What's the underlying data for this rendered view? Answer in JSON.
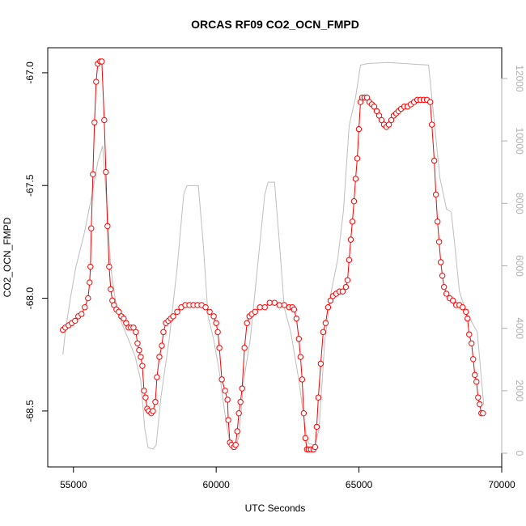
{
  "chart_data": {
    "type": "line",
    "title": "ORCAS RF09 CO2_OCN_FMPD",
    "xlabel": "UTC Seconds",
    "ylabel": "CO2_OCN_FMPD",
    "xlim": [
      54100,
      70000
    ],
    "xticks": [
      55000,
      60000,
      65000,
      70000
    ],
    "ylim": [
      -68.748,
      -66.889
    ],
    "yticks": [
      {
        "value": -67,
        "label": "-67.0"
      },
      -67.5,
      {
        "value": -68,
        "label": "-68.0"
      },
      -68.5
    ],
    "y2lim": [
      -440,
      12984
    ],
    "y2ticks": [
      0,
      2000,
      4000,
      6000,
      8000,
      10000,
      12000
    ],
    "y2_color": "#b0b0b0",
    "series": [
      {
        "color": "#bebebe",
        "axis": "y2",
        "markers": false,
        "x": [
          54631,
          54716,
          54886,
          55085,
          55369,
          55653,
          55852,
          56022,
          56164,
          56306,
          56505,
          56704,
          56931,
          57158,
          57357,
          57499,
          57613,
          57783,
          57897,
          58067,
          58351,
          58635,
          58862,
          58976,
          59374,
          59544,
          59714,
          59913,
          60112,
          60339,
          60481,
          60680,
          60794,
          60964,
          61191,
          61418,
          61702,
          61816,
          62043,
          62214,
          62384,
          62611,
          62895,
          63122,
          63236,
          63463,
          63605,
          63804,
          64031,
          64258,
          64457,
          64656,
          64883,
          65054,
          65310,
          66019,
          66871,
          67439,
          67609,
          67836,
          68064,
          68234,
          68348,
          68518,
          68746,
          69144,
          69370
        ],
        "values": [
          3160,
          3885,
          4920,
          5960,
          7000,
          8290,
          9320,
          9840,
          8030,
          5960,
          4660,
          4140,
          3630,
          3110,
          2330,
          780,
          180,
          130,
          260,
          1810,
          3630,
          5960,
          8290,
          8570,
          8570,
          6730,
          4400,
          3630,
          2590,
          1040,
          310,
          230,
          520,
          2330,
          3630,
          5700,
          8290,
          8680,
          8680,
          6730,
          4660,
          3885,
          2330,
          780,
          310,
          260,
          780,
          3630,
          5180,
          6220,
          7770,
          10490,
          11400,
          12430,
          12480,
          12510,
          12460,
          12430,
          10880,
          8810,
          7820,
          7720,
          6730,
          5180,
          4530,
          3885,
          1550
        ]
      },
      {
        "color": "#ff0000",
        "markers": true,
        "x": [
          54631,
          54716,
          54830,
          54943,
          55057,
          55170,
          55284,
          55398,
          55511,
          55568,
          55596,
          55625,
          55682,
          55738,
          55795,
          55852,
          55937,
          55994,
          56079,
          56136,
          56193,
          56250,
          56306,
          56363,
          56420,
          56505,
          56590,
          56676,
          56761,
          56846,
          56931,
          57016,
          57102,
          57187,
          57244,
          57300,
          57357,
          57414,
          57471,
          57528,
          57584,
          57641,
          57726,
          57783,
          57868,
          57925,
          58010,
          58096,
          58152,
          58238,
          58323,
          58408,
          58493,
          58635,
          58777,
          58919,
          59061,
          59203,
          59345,
          59487,
          59629,
          59771,
          59913,
          59998,
          60055,
          60112,
          60197,
          60311,
          60396,
          60424,
          60481,
          60538,
          60623,
          60680,
          60737,
          60794,
          60850,
          60907,
          60992,
          61078,
          61163,
          61248,
          61362,
          61532,
          61702,
          61873,
          62043,
          62214,
          62384,
          62554,
          62668,
          62726,
          62810,
          62895,
          62952,
          63009,
          63066,
          63122,
          63179,
          63236,
          63321,
          63406,
          63463,
          63520,
          63577,
          63662,
          63747,
          63832,
          63918,
          64003,
          64088,
          64202,
          64315,
          64429,
          64542,
          64599,
          64656,
          64713,
          64770,
          64826,
          64883,
          64940,
          64997,
          65054,
          65110,
          65196,
          65281,
          65366,
          65451,
          65536,
          65622,
          65707,
          65792,
          65877,
          65962,
          66048,
          66133,
          66218,
          66303,
          66388,
          66474,
          66587,
          66701,
          66814,
          66928,
          67042,
          67155,
          67269,
          67382,
          67496,
          67553,
          67638,
          67695,
          67752,
          67808,
          67865,
          67922,
          67979,
          68064,
          68178,
          68291,
          68405,
          68518,
          68632,
          68746,
          68802,
          68859,
          68944,
          69001,
          69058,
          69115,
          69172,
          69228,
          69285,
          69342
        ],
        "values": [
          -68.14,
          -68.13,
          -68.12,
          -68.11,
          -68.1,
          -68.08,
          -68.07,
          -68.04,
          -68.0,
          -67.93,
          -67.86,
          -67.69,
          -67.45,
          -67.22,
          -67.04,
          -66.96,
          -66.95,
          -66.95,
          -67.21,
          -67.44,
          -67.68,
          -67.86,
          -67.96,
          -68.01,
          -68.03,
          -68.05,
          -68.06,
          -68.08,
          -68.09,
          -68.11,
          -68.13,
          -68.13,
          -68.13,
          -68.15,
          -68.2,
          -68.23,
          -68.26,
          -68.3,
          -68.41,
          -68.44,
          -68.49,
          -68.5,
          -68.51,
          -68.5,
          -68.46,
          -68.35,
          -68.26,
          -68.21,
          -68.15,
          -68.11,
          -68.1,
          -68.09,
          -68.08,
          -68.06,
          -68.04,
          -68.03,
          -68.03,
          -68.03,
          -68.03,
          -68.03,
          -68.04,
          -68.06,
          -68.08,
          -68.11,
          -68.15,
          -68.22,
          -68.36,
          -68.41,
          -68.45,
          -68.54,
          -68.64,
          -68.65,
          -68.66,
          -68.65,
          -68.59,
          -68.51,
          -68.46,
          -68.4,
          -68.22,
          -68.11,
          -68.08,
          -68.07,
          -68.06,
          -68.04,
          -68.04,
          -68.02,
          -68.02,
          -68.03,
          -68.03,
          -68.04,
          -68.04,
          -68.05,
          -68.09,
          -68.18,
          -68.26,
          -68.36,
          -68.51,
          -68.62,
          -68.67,
          -68.67,
          -68.67,
          -68.67,
          -68.66,
          -68.57,
          -68.44,
          -68.29,
          -68.15,
          -68.11,
          -68.04,
          -68.01,
          -67.99,
          -67.98,
          -67.97,
          -67.97,
          -67.95,
          -67.92,
          -67.83,
          -67.74,
          -67.66,
          -67.57,
          -67.47,
          -67.38,
          -67.25,
          -67.13,
          -67.11,
          -67.11,
          -67.11,
          -67.13,
          -67.14,
          -67.15,
          -67.17,
          -67.19,
          -67.21,
          -67.23,
          -67.24,
          -67.23,
          -67.21,
          -67.19,
          -67.18,
          -67.17,
          -67.16,
          -67.15,
          -67.15,
          -67.14,
          -67.13,
          -67.12,
          -67.12,
          -67.12,
          -67.12,
          -67.13,
          -67.23,
          -67.39,
          -67.54,
          -67.66,
          -67.75,
          -67.84,
          -67.9,
          -67.95,
          -67.98,
          -68.0,
          -68.01,
          -68.03,
          -68.03,
          -68.04,
          -68.06,
          -68.09,
          -68.16,
          -68.2,
          -68.27,
          -68.34,
          -68.37,
          -68.44,
          -68.47,
          -68.51,
          -68.51
        ]
      }
    ]
  }
}
